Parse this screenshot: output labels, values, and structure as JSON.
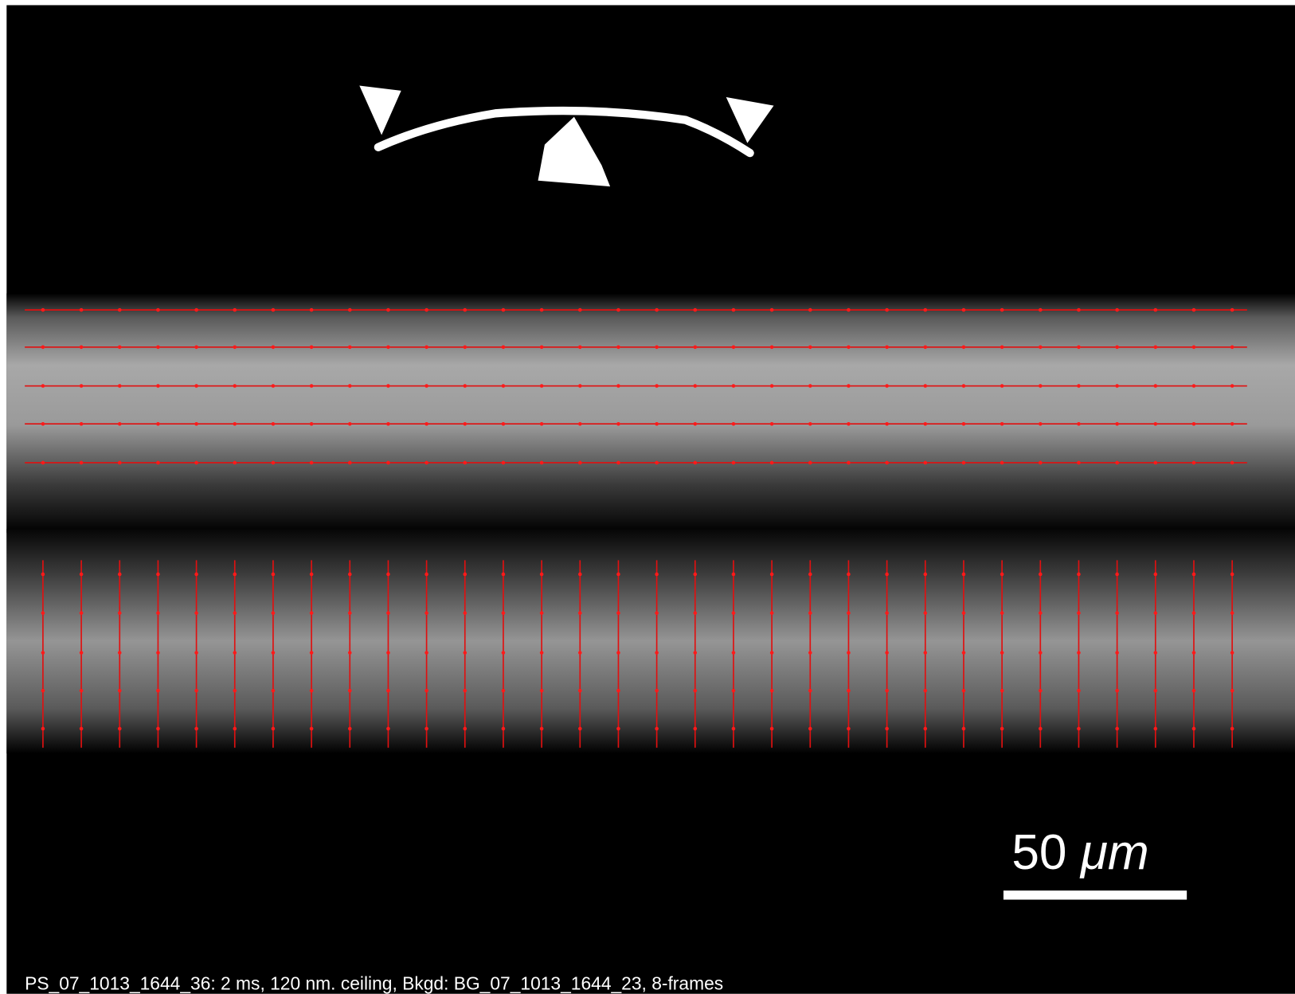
{
  "scale_bar": {
    "value": "50",
    "unit": "μm"
  },
  "caption": "PS_07_1013_1644_36: 2 ms, 120 nm.  ceiling, Bkgd: BG_07_1013_1644_23, 8-frames"
}
